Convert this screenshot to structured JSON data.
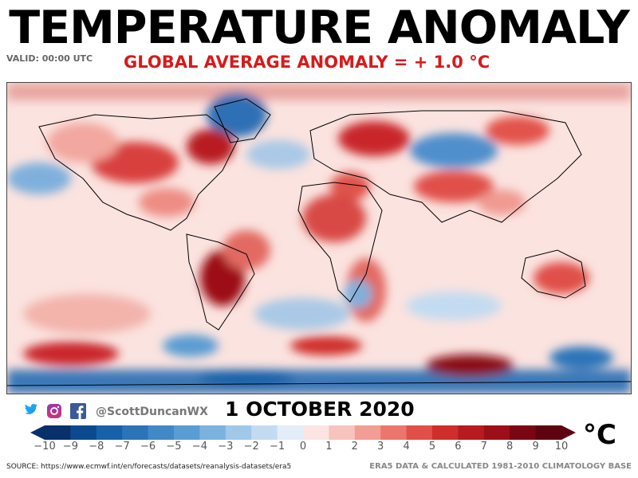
{
  "header": {
    "title": "TEMPERATURE ANOMALY",
    "valid": "VALID: 00:00 UTC",
    "subtitle": "GLOBAL AVERAGE ANOMALY = + 1.0 °C"
  },
  "map": {
    "variable": "Temperature anomaly",
    "projection": "equirectangular world map with country borders and coastlines",
    "color_scale": "diverging blue (cold) to red (warm)"
  },
  "footer": {
    "handle": "@ScottDuncanWX",
    "date": "1 OCTOBER 2020",
    "social_icons": [
      "twitter-icon",
      "instagram-icon",
      "facebook-icon"
    ],
    "source": "SOURCE: https://www.ecmwf.int/en/forecasts/datasets/reanalysis-datasets/era5",
    "base": "ERA5 DATA & CALCULATED 1981-2010 CLIMATOLOGY BASE"
  },
  "colorbar": {
    "unit": "°C",
    "ticks": [
      "−10",
      "−9",
      "−8",
      "−7",
      "−6",
      "−5",
      "−4",
      "−3",
      "−2",
      "−1",
      "0",
      "1",
      "2",
      "3",
      "4",
      "5",
      "6",
      "7",
      "8",
      "9",
      "10"
    ],
    "colors": [
      "#08306b",
      "#0c4a8f",
      "#1761a8",
      "#2b74b8",
      "#4189c6",
      "#5a9dd2",
      "#7bb2de",
      "#a0c8e8",
      "#c3dbf1",
      "#e2edf8",
      "#fbe4e2",
      "#f8c3bd",
      "#f29d95",
      "#eb766e",
      "#e04f48",
      "#cf2e2a",
      "#b71a1f",
      "#9c0f18",
      "#7a0612",
      "#5e0310"
    ]
  }
}
